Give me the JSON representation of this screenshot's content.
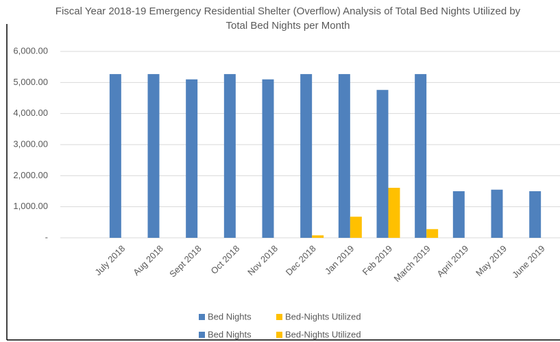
{
  "chart_data": {
    "type": "bar",
    "title": "Fiscal Year 2018-19 Emergency Residential Shelter (Overflow) Analysis of Total Bed Nights Utilized by Total Bed Nights per Month",
    "categories": [
      "July 2018",
      "Aug 2018",
      "Sept 2018",
      "Oct 2018",
      "Nov 2018",
      "Dec 2018",
      "Jan 2019",
      "Feb 2019",
      "March 2019",
      "April 2019",
      "May 2019",
      "June 2019"
    ],
    "series": [
      {
        "name": "Bed Nights",
        "color": "#4f81bd",
        "values": [
          5270,
          5270,
          5100,
          5270,
          5100,
          5270,
          5270,
          4760,
          5270,
          1500,
          1550,
          1500
        ]
      },
      {
        "name": "Bed-Nights Utilized",
        "color": "#ffc000",
        "values": [
          0,
          0,
          0,
          0,
          0,
          80,
          680,
          1610,
          280,
          0,
          0,
          0
        ]
      }
    ],
    "ylim": [
      0,
      6000
    ],
    "yticks": [
      {
        "value": 0,
        "label": "-"
      },
      {
        "value": 1000,
        "label": "1,000.00"
      },
      {
        "value": 2000,
        "label": "2,000.00"
      },
      {
        "value": 3000,
        "label": "3,000.00"
      },
      {
        "value": 4000,
        "label": "4,000.00"
      },
      {
        "value": 5000,
        "label": "5,000.00"
      },
      {
        "value": 6000,
        "label": "6,000.00"
      }
    ],
    "grid": true
  }
}
